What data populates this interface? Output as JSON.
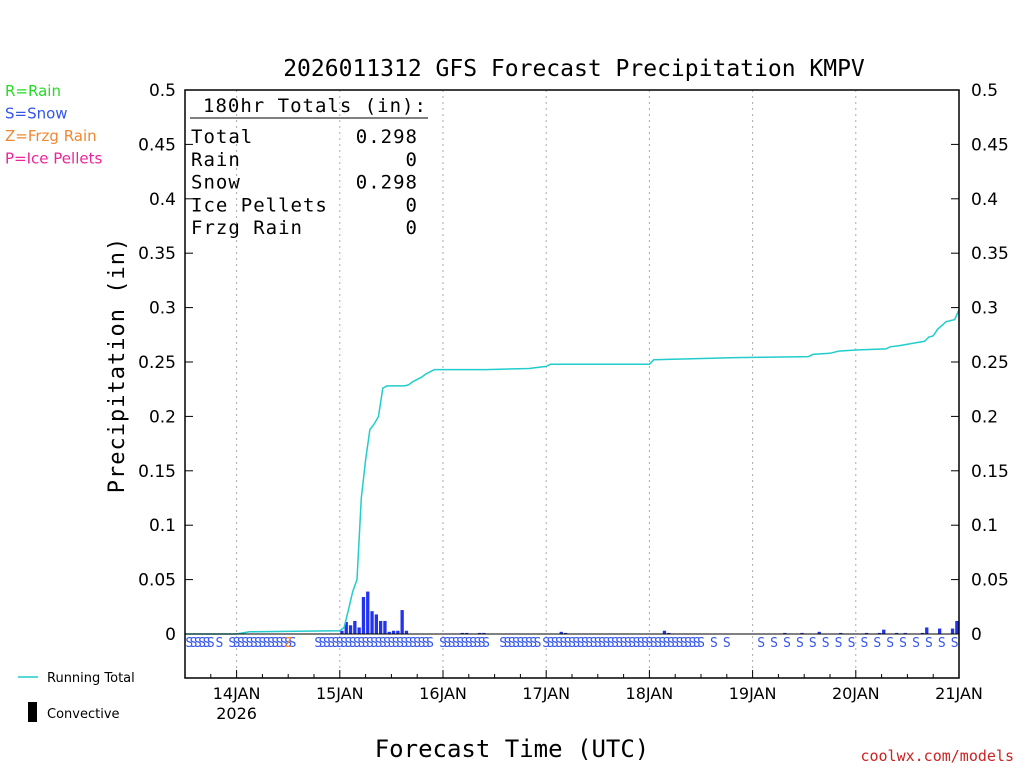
{
  "chart_data": {
    "type": "bar",
    "title": "2026011312 GFS Forecast Precipitation KMPV",
    "ylabel": "Precipitation (in)",
    "xlabel": "Forecast Time (UTC)",
    "ylim": [
      0,
      0.5
    ],
    "yticks": [
      "0",
      "0.05",
      "0.1",
      "0.15",
      "0.2",
      "0.25",
      "0.3",
      "0.35",
      "0.4",
      "0.45",
      "0.5"
    ],
    "x_unit": "forecast hour",
    "xlim": [
      0,
      180
    ],
    "xticks": [
      {
        "hour": 12,
        "label": "14JAN",
        "sub": "2026"
      },
      {
        "hour": 36,
        "label": "15JAN",
        "sub": ""
      },
      {
        "hour": 60,
        "label": "16JAN",
        "sub": ""
      },
      {
        "hour": 84,
        "label": "17JAN",
        "sub": ""
      },
      {
        "hour": 108,
        "label": "18JAN",
        "sub": ""
      },
      {
        "hour": 132,
        "label": "19JAN",
        "sub": ""
      },
      {
        "hour": 156,
        "label": "20JAN",
        "sub": ""
      },
      {
        "hour": 180,
        "label": "21JAN",
        "sub": ""
      }
    ],
    "legend_types": [
      {
        "text": "R=Rain",
        "color": "#22dd22"
      },
      {
        "text": "S=Snow",
        "color": "#3355ee"
      },
      {
        "text": "Z=Frzg Rain",
        "color": "#ee8833"
      },
      {
        "text": "P=Ice Pellets",
        "color": "#ee2299"
      }
    ],
    "legend_series": [
      {
        "text": "Running Total",
        "color": "#22cccc"
      },
      {
        "text": "Convective",
        "color": "#000000"
      }
    ],
    "totals": {
      "header": "180hr Totals (in):",
      "rows": [
        {
          "label": "Total",
          "value": "0.298"
        },
        {
          "label": "Rain",
          "value": "0"
        },
        {
          "label": "Snow",
          "value": "0.298"
        },
        {
          "label": "Ice Pellets",
          "value": "0"
        },
        {
          "label": "Frzg Rain",
          "value": "0"
        }
      ]
    },
    "series": [
      {
        "name": "Running Total",
        "type": "line",
        "color": "#22cccc",
        "points": [
          [
            0,
            0
          ],
          [
            12,
            0
          ],
          [
            15,
            0.002
          ],
          [
            36,
            0.003
          ],
          [
            37,
            0.006
          ],
          [
            38,
            0.022
          ],
          [
            39,
            0.039
          ],
          [
            40,
            0.05
          ],
          [
            41,
            0.125
          ],
          [
            42,
            0.16
          ],
          [
            43,
            0.188
          ],
          [
            44,
            0.193
          ],
          [
            45,
            0.2
          ],
          [
            46,
            0.226
          ],
          [
            47,
            0.228
          ],
          [
            48,
            0.228
          ],
          [
            49,
            0.228
          ],
          [
            50,
            0.228
          ],
          [
            51,
            0.228
          ],
          [
            52,
            0.229
          ],
          [
            53,
            0.232
          ],
          [
            54,
            0.234
          ],
          [
            55,
            0.236
          ],
          [
            56,
            0.239
          ],
          [
            57,
            0.241
          ],
          [
            58,
            0.243
          ],
          [
            59,
            0.243
          ],
          [
            60,
            0.243
          ],
          [
            61,
            0.243
          ],
          [
            62,
            0.243
          ],
          [
            70,
            0.243
          ],
          [
            80,
            0.244
          ],
          [
            84,
            0.246
          ],
          [
            85,
            0.248
          ],
          [
            108,
            0.248
          ],
          [
            109,
            0.252
          ],
          [
            128,
            0.254
          ],
          [
            145,
            0.255
          ],
          [
            146,
            0.257
          ],
          [
            150,
            0.258
          ],
          [
            152,
            0.26
          ],
          [
            156,
            0.261
          ],
          [
            163,
            0.262
          ],
          [
            164,
            0.264
          ],
          [
            166,
            0.265
          ],
          [
            169,
            0.267
          ],
          [
            172,
            0.269
          ],
          [
            173,
            0.273
          ],
          [
            174,
            0.274
          ],
          [
            175,
            0.28
          ],
          [
            177,
            0.287
          ],
          [
            179,
            0.289
          ],
          [
            180,
            0.298
          ]
        ]
      },
      {
        "name": "Hourly",
        "type": "bar",
        "color": "#2233ee",
        "points": [
          [
            37,
            0.003
          ],
          [
            38,
            0.011
          ],
          [
            39,
            0.008
          ],
          [
            40,
            0.012
          ],
          [
            41,
            0.006
          ],
          [
            42,
            0.034
          ],
          [
            43,
            0.039
          ],
          [
            44,
            0.021
          ],
          [
            45,
            0.018
          ],
          [
            46,
            0.012
          ],
          [
            47,
            0.012
          ],
          [
            48,
            0.002
          ],
          [
            49,
            0.003
          ],
          [
            50,
            0.003
          ],
          [
            51,
            0.022
          ],
          [
            52,
            0.003
          ],
          [
            65,
            0.001
          ],
          [
            66,
            0.001
          ],
          [
            69,
            0.001
          ],
          [
            70,
            0.001
          ],
          [
            88,
            0.002
          ],
          [
            89,
            0.001
          ],
          [
            112,
            0.003
          ],
          [
            113,
            0.001
          ],
          [
            140,
            0.001
          ],
          [
            144,
            0.001
          ],
          [
            148,
            0.002
          ],
          [
            153,
            0.001
          ],
          [
            159,
            0.001
          ],
          [
            162,
            0.001
          ],
          [
            163,
            0.004
          ],
          [
            166,
            0.001
          ],
          [
            168,
            0.001
          ],
          [
            172,
            0.001
          ],
          [
            173,
            0.006
          ],
          [
            176,
            0.005
          ],
          [
            179,
            0.005
          ],
          [
            180,
            0.012
          ]
        ]
      }
    ],
    "precip_type_marks": {
      "dense_s_ranges": [
        [
          1,
          6
        ],
        [
          11,
          25
        ],
        [
          31,
          57
        ],
        [
          60,
          70
        ],
        [
          74,
          82
        ],
        [
          84,
          91
        ],
        [
          92,
          110
        ],
        [
          111,
          119
        ]
      ],
      "sparse_s_hours": [
        8,
        120,
        123,
        126,
        134,
        137,
        140,
        143,
        146,
        149,
        152,
        155,
        158,
        161,
        164,
        167,
        170,
        173,
        176,
        179
      ],
      "z_hours": [
        24
      ]
    },
    "credit": "coolwx.com/models"
  }
}
